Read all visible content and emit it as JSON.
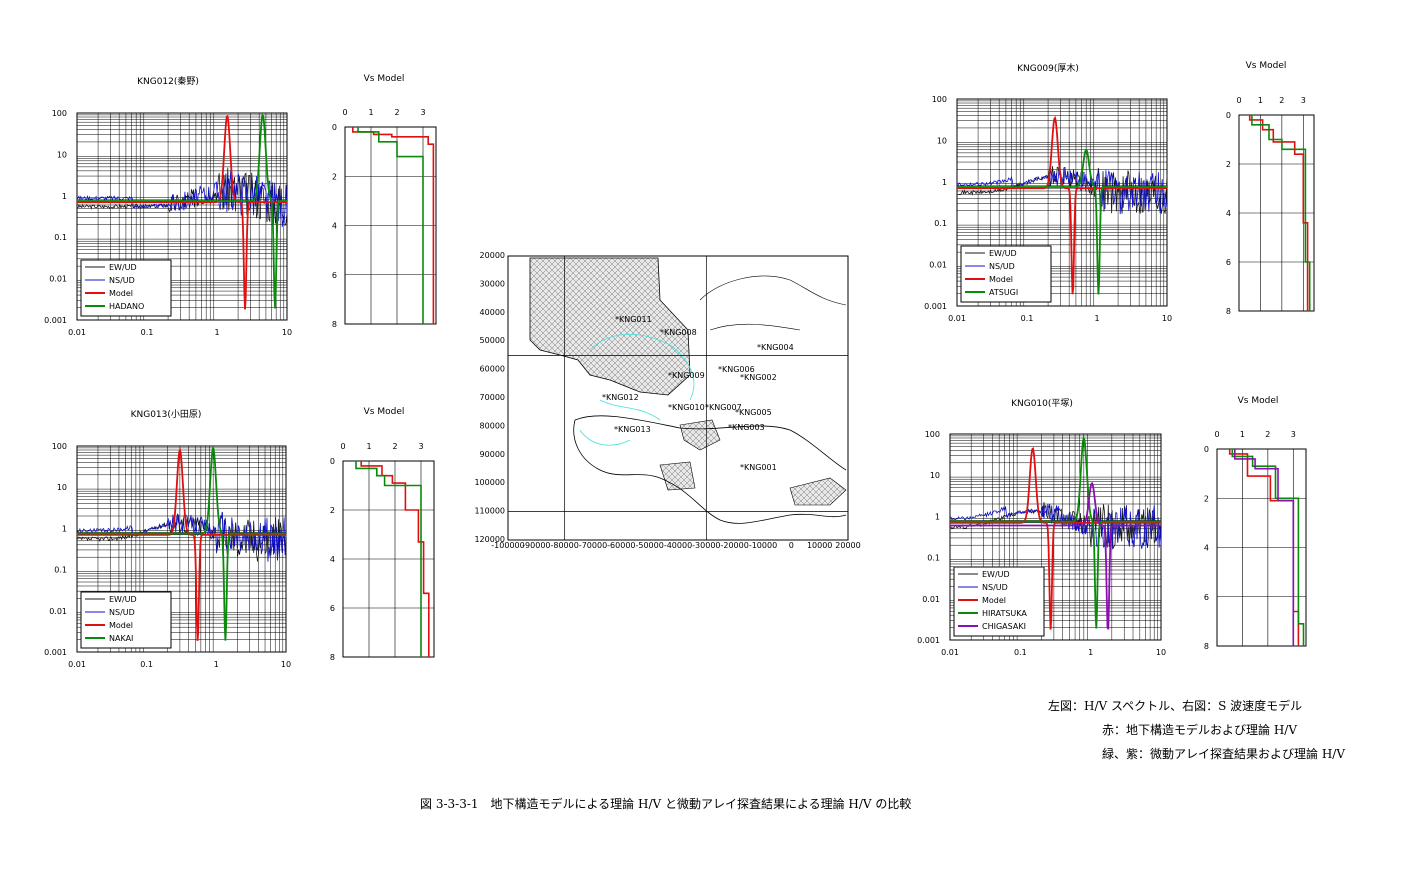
{
  "colors": {
    "ew": "#1a1a1a",
    "ns": "#1010cc",
    "model": "#e01010",
    "array1": "#0a8a0a",
    "array2": "#8a10b0",
    "map_shade": "#b0b0b0",
    "map_water": "#40e0e0"
  },
  "chart_data": [
    {
      "id": "hv1",
      "type": "line",
      "title": "KNG012(秦野)",
      "xscale": "log",
      "yscale": "log",
      "xlim": [
        0.01,
        10
      ],
      "ylim": [
        0.001,
        100
      ],
      "xticklabels": [
        "0.01",
        "0.1",
        "1",
        "10"
      ],
      "yticklabels": [
        "0.001",
        "0.01",
        "0.1",
        "1",
        "10",
        "100"
      ],
      "legend": [
        "EW/UD",
        "NS/UD",
        "Model",
        "HADANO"
      ],
      "model_peak": {
        "f": 1.4,
        "hv": 85
      },
      "array_peak": {
        "f": 4.5,
        "hv": 90
      }
    },
    {
      "id": "vs1",
      "type": "line",
      "title": "Vs Model",
      "xlim": [
        0,
        3.5
      ],
      "ylim": [
        0,
        8
      ],
      "xticklabels": [
        "0",
        "1",
        "2",
        "3"
      ],
      "yticklabels": [
        "0",
        "2",
        "4",
        "6",
        "8"
      ],
      "series": [
        {
          "name": "Model",
          "steps": [
            [
              0.3,
              0.2
            ],
            [
              1.1,
              0.3
            ],
            [
              1.8,
              0.4
            ],
            [
              3.2,
              0.7
            ],
            [
              3.4,
              8
            ]
          ]
        },
        {
          "name": "HADANO",
          "steps": [
            [
              0.5,
              0.2
            ],
            [
              1.3,
              0.6
            ],
            [
              2.0,
              1.2
            ],
            [
              3.0,
              8
            ]
          ]
        }
      ]
    },
    {
      "id": "hv2",
      "type": "line",
      "title": "KNG013(小田原)",
      "xscale": "log",
      "yscale": "log",
      "xlim": [
        0.01,
        10
      ],
      "ylim": [
        0.001,
        100
      ],
      "xticklabels": [
        "0.01",
        "0.1",
        "1",
        "10"
      ],
      "yticklabels": [
        "0.001",
        "0.01",
        "0.1",
        "1",
        "10",
        "100"
      ],
      "legend": [
        "EW/UD",
        "NS/UD",
        "Model",
        "NAKAI"
      ],
      "model_peak": {
        "f": 0.3,
        "hv": 80
      },
      "array_peak": {
        "f": 0.9,
        "hv": 90
      }
    },
    {
      "id": "vs2",
      "type": "line",
      "title": "Vs Model",
      "xlim": [
        0,
        3.5
      ],
      "ylim": [
        0,
        8
      ],
      "xticklabels": [
        "0",
        "1",
        "2",
        "3"
      ],
      "yticklabels": [
        "0",
        "2",
        "4",
        "6",
        "8"
      ],
      "series": [
        {
          "name": "Model",
          "steps": [
            [
              0.7,
              0.2
            ],
            [
              1.5,
              0.6
            ],
            [
              1.9,
              0.9
            ],
            [
              2.4,
              2.0
            ],
            [
              2.9,
              3.3
            ],
            [
              3.1,
              5.4
            ],
            [
              3.3,
              8
            ]
          ]
        },
        {
          "name": "NAKAI",
          "steps": [
            [
              0.5,
              0.3
            ],
            [
              1.3,
              0.6
            ],
            [
              1.6,
              1.0
            ],
            [
              3.0,
              8
            ]
          ]
        }
      ]
    },
    {
      "id": "hv3",
      "type": "line",
      "title": "KNG009(厚木)",
      "xscale": "log",
      "yscale": "log",
      "xlim": [
        0.01,
        10
      ],
      "ylim": [
        0.001,
        100
      ],
      "xticklabels": [
        "0.01",
        "0.1",
        "1",
        "10"
      ],
      "yticklabels": [
        "0.001",
        "0.01",
        "0.1",
        "1",
        "10",
        "100"
      ],
      "legend": [
        "EW/UD",
        "NS/UD",
        "Model",
        "ATSUGI"
      ],
      "model_peak": {
        "f": 0.25,
        "hv": 35
      },
      "array_peak": {
        "f": 0.7,
        "hv": 6
      }
    },
    {
      "id": "vs3",
      "type": "line",
      "title": "Vs Model",
      "xlim": [
        0,
        3.5
      ],
      "ylim": [
        0,
        8
      ],
      "xticklabels": [
        "0",
        "1",
        "2",
        "3"
      ],
      "yticklabels": [
        "0",
        "2",
        "4",
        "6",
        "8"
      ],
      "series": [
        {
          "name": "Model",
          "steps": [
            [
              0.5,
              0.2
            ],
            [
              1.1,
              0.6
            ],
            [
              1.6,
              1.1
            ],
            [
              2.6,
              1.6
            ],
            [
              3.0,
              4.4
            ],
            [
              3.2,
              8
            ]
          ]
        },
        {
          "name": "ATSUGI",
          "steps": [
            [
              0.6,
              0.4
            ],
            [
              1.4,
              1.0
            ],
            [
              2.0,
              1.4
            ],
            [
              3.1,
              6.0
            ],
            [
              3.3,
              8
            ]
          ]
        }
      ]
    },
    {
      "id": "hv4",
      "type": "line",
      "title": "KNG010(平塚)",
      "xscale": "log",
      "yscale": "log",
      "xlim": [
        0.01,
        10
      ],
      "ylim": [
        0.001,
        100
      ],
      "xticklabels": [
        "0.01",
        "0.1",
        "1",
        "10"
      ],
      "yticklabels": [
        "0.001",
        "0.01",
        "0.1",
        "1",
        "10",
        "100"
      ],
      "legend": [
        "EW/UD",
        "NS/UD",
        "Model",
        "HIRATSUKA",
        "CHIGASAKI"
      ],
      "model_peak": {
        "f": 0.15,
        "hv": 45
      },
      "array_peak": {
        "f": 0.8,
        "hv": 80
      }
    },
    {
      "id": "vs4",
      "type": "line",
      "title": "Vs Model",
      "xlim": [
        0,
        3.5
      ],
      "ylim": [
        0,
        8
      ],
      "xticklabels": [
        "0",
        "1",
        "2",
        "3"
      ],
      "yticklabels": [
        "0",
        "2",
        "4",
        "6",
        "8"
      ],
      "series": [
        {
          "name": "Model",
          "steps": [
            [
              0.5,
              0.2
            ],
            [
              1.2,
              1.1
            ],
            [
              2.1,
              2.1
            ],
            [
              3.0,
              6.6
            ],
            [
              3.2,
              8
            ]
          ]
        },
        {
          "name": "HIRATSUKA",
          "steps": [
            [
              0.6,
              0.3
            ],
            [
              1.4,
              0.7
            ],
            [
              2.3,
              2.0
            ],
            [
              3.2,
              7.1
            ],
            [
              3.4,
              8
            ]
          ]
        },
        {
          "name": "CHIGASAKI",
          "steps": [
            [
              0.7,
              0.4
            ],
            [
              1.5,
              0.8
            ],
            [
              2.4,
              2.1
            ],
            [
              3.0,
              8
            ]
          ]
        }
      ]
    },
    {
      "id": "map",
      "type": "map",
      "xticklabels": [
        "-100000",
        "-90000",
        "-80000",
        "-70000",
        "-60000",
        "-50000",
        "-40000",
        "-30000",
        "-20000",
        "-10000",
        "0",
        "10000",
        "20000"
      ],
      "yticklabels": [
        "20000",
        "30000",
        "40000",
        "50000",
        "60000",
        "70000",
        "80000",
        "90000",
        "100000",
        "110000",
        "120000"
      ],
      "stations": [
        "KNG011",
        "KNG008",
        "KNG009",
        "KNG006",
        "KNG004",
        "KNG012",
        "KNG010",
        "KNG007",
        "KNG005",
        "KNG013",
        "KNG003",
        "KNG001",
        "KNG002"
      ]
    }
  ],
  "notes": [
    "左図：H/V スペクトル、右図：S 波速度モデル",
    "赤：地下構造モデルおよび理論 H/V",
    "緑、紫：微動アレイ探査結果および理論 H/V"
  ],
  "caption": "図 3-3-3-1　地下構造モデルによる理論 H/V と微動アレイ探査結果による理論 H/V の比較"
}
